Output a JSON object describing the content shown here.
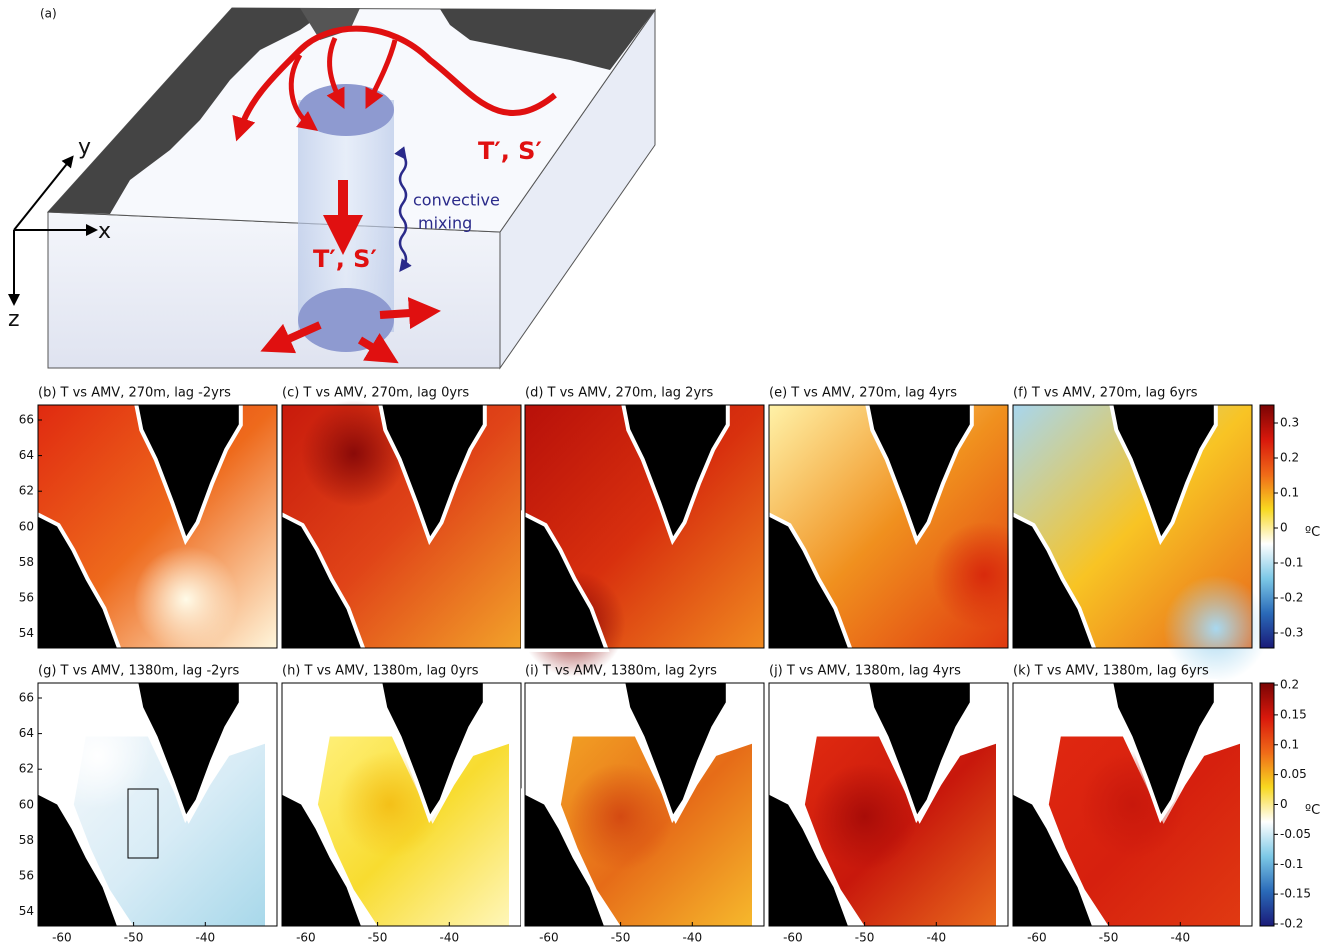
{
  "schematic": {
    "panel_label": "(a)",
    "axes": [
      "y",
      "x",
      "z"
    ],
    "surface_label": "T′, S′",
    "deep_label": "T′, S′",
    "mixing_label": [
      "convective",
      "mixing"
    ]
  },
  "panels": [
    {
      "title": "(b) T vs AMV, 270m, lag -2yrs"
    },
    {
      "title": "(c) T vs AMV, 270m, lag 0yrs"
    },
    {
      "title": "(d) T vs AMV, 270m, lag 2yrs"
    },
    {
      "title": "(e) T vs AMV, 270m, lag 4yrs"
    },
    {
      "title": "(f) T vs AMV, 270m, lag 6yrs"
    },
    {
      "title": "(g) T vs AMV, 1380m, lag -2yrs"
    },
    {
      "title": "(h) T vs AMV, 1380m, lag 0yrs"
    },
    {
      "title": "(i) T vs AMV, 1380m, lag 2yrs"
    },
    {
      "title": "(j) T vs AMV, 1380m, lag 4yrs"
    },
    {
      "title": "(k) T vs AMV, 1380m, lag 6yrs"
    }
  ],
  "y_ticks": [
    "66",
    "64",
    "62",
    "60",
    "58",
    "56",
    "54"
  ],
  "x_ticks": [
    "-60",
    "-50",
    "-40"
  ],
  "colorbars": [
    {
      "ticks": [
        "0.3",
        "0.2",
        "0.1",
        "0",
        "-0.1",
        "-0.2",
        "-0.3"
      ],
      "unit": "ºC"
    },
    {
      "ticks": [
        "0.2",
        "0.15",
        "0.1",
        "0.05",
        "0",
        "-0.05",
        "-0.1",
        "-0.15",
        "-0.2"
      ],
      "unit": "ºC"
    }
  ]
}
